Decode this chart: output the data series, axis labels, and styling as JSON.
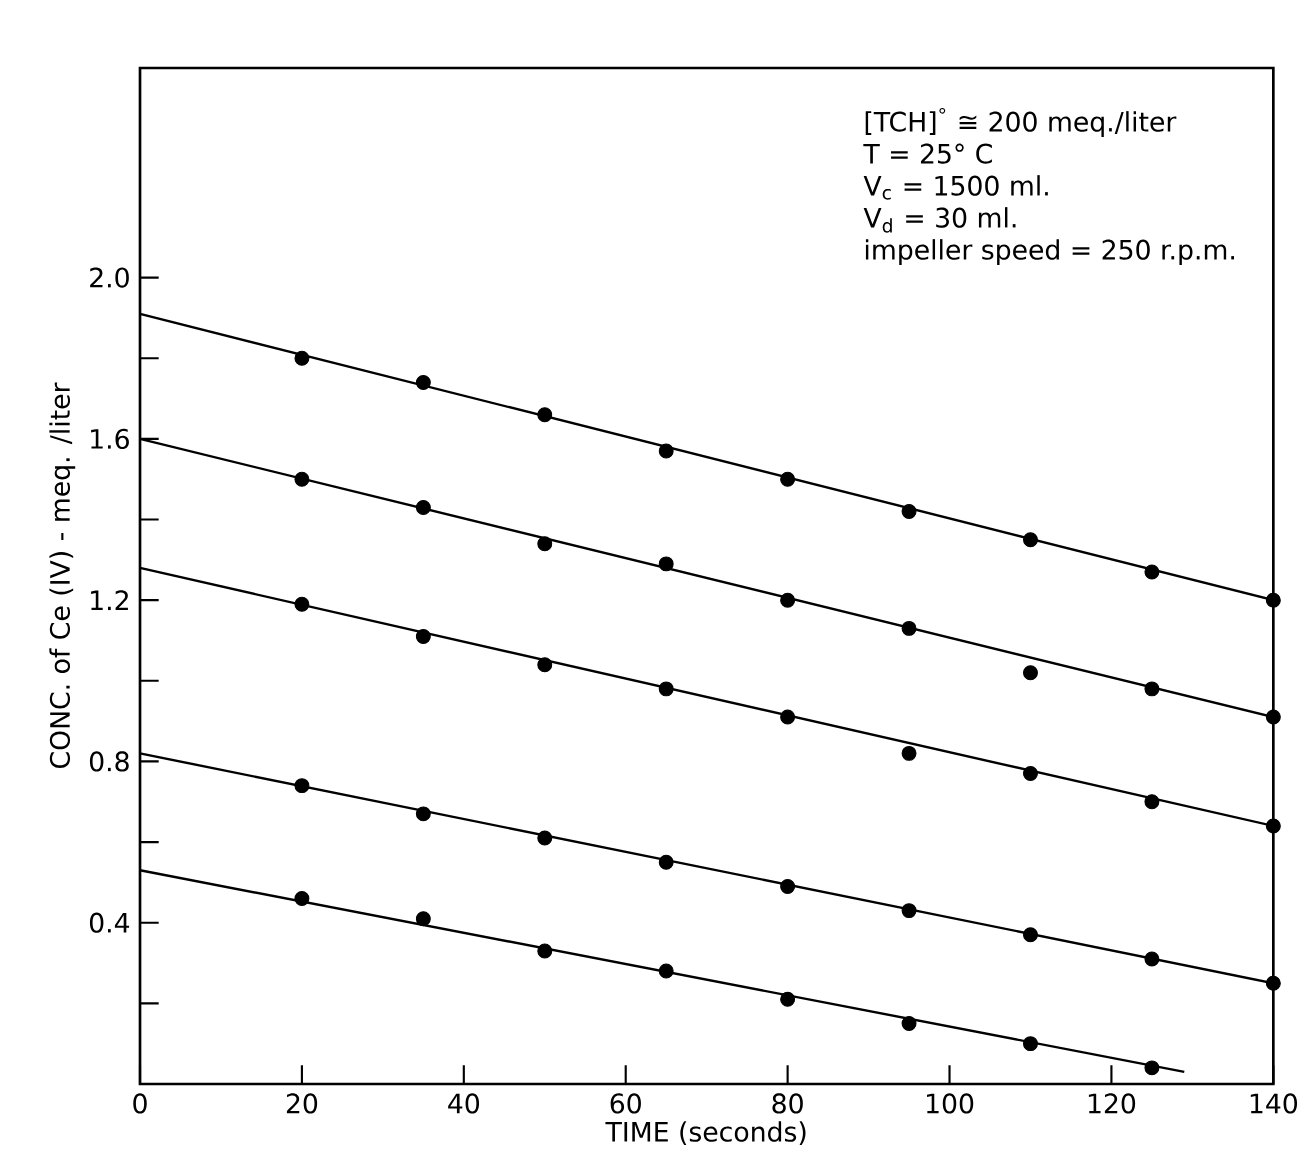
{
  "chart_data": {
    "type": "scatter",
    "xlabel": "TIME (seconds)",
    "ylabel": "CONC. of Ce (IV) - meq. /liter",
    "annotations": [
      "[TCH]$^{°}$ ≅ 200 meq./liter",
      "T = 25° C",
      "V$_{c}$ = 1500 ml.",
      "V$_{d}$ = 30 ml.",
      "impeller speed = 250 r.p.m."
    ],
    "xlim": [
      0,
      140
    ],
    "ylim": [
      0,
      2.52
    ],
    "xticks": [
      0,
      20,
      40,
      60,
      80,
      100,
      120,
      140
    ],
    "yticks": [
      {
        "value": 0.2,
        "label": null
      },
      {
        "value": 0.4,
        "label": "0.4"
      },
      {
        "value": 0.6,
        "label": null
      },
      {
        "value": 0.8,
        "label": "0.8"
      },
      {
        "value": 1.0,
        "label": null
      },
      {
        "value": 1.2,
        "label": "1.2"
      },
      {
        "value": 1.4,
        "label": null
      },
      {
        "value": 1.6,
        "label": "1.6"
      },
      {
        "value": 1.8,
        "label": null
      },
      {
        "value": 2.0,
        "label": "2.0"
      }
    ],
    "grid": false,
    "legend": false,
    "marker": "circle",
    "series": [
      {
        "color": "#000000",
        "x": [
          20,
          35,
          50,
          65,
          80,
          95,
          110,
          125,
          140
        ],
        "values": [
          1.8,
          1.74,
          1.66,
          1.57,
          1.5,
          1.42,
          1.35,
          1.27,
          1.2
        ]
      },
      {
        "color": "#000000",
        "x": [
          20,
          35,
          50,
          65,
          80,
          95,
          110,
          125,
          140
        ],
        "values": [
          1.5,
          1.43,
          1.34,
          1.29,
          1.2,
          1.13,
          1.02,
          0.98,
          0.91
        ]
      },
      {
        "color": "#000000",
        "x": [
          20,
          35,
          50,
          65,
          80,
          95,
          110,
          125,
          140
        ],
        "values": [
          1.19,
          1.11,
          1.04,
          0.98,
          0.91,
          0.82,
          0.77,
          0.7,
          0.64
        ]
      },
      {
        "color": "#000000",
        "x": [
          20,
          35,
          50,
          65,
          80,
          95,
          110,
          125,
          140
        ],
        "values": [
          0.74,
          0.67,
          0.61,
          0.55,
          0.49,
          0.43,
          0.37,
          0.31,
          0.25
        ]
      },
      {
        "color": "#000000",
        "x": [
          20,
          35,
          50,
          65,
          80,
          95,
          110,
          125
        ],
        "values": [
          0.46,
          0.41,
          0.33,
          0.28,
          0.21,
          0.15,
          0.1,
          0.04
        ]
      },
      {
        "type": "line",
        "color": "#000000",
        "marker": "none",
        "x": [
          0,
          140
        ],
        "values": [
          1.91,
          1.2
        ]
      },
      {
        "type": "line",
        "color": "#000000",
        "marker": "none",
        "x": [
          0,
          140
        ],
        "values": [
          1.6,
          0.91
        ]
      },
      {
        "type": "line",
        "color": "#000000",
        "marker": "none",
        "x": [
          0,
          140
        ],
        "values": [
          1.28,
          0.64
        ]
      },
      {
        "type": "line",
        "color": "#000000",
        "marker": "none",
        "x": [
          0,
          140
        ],
        "values": [
          0.82,
          0.25
        ]
      },
      {
        "type": "line",
        "color": "#000000",
        "marker": "none",
        "x": [
          0,
          129
        ],
        "values": [
          0.53,
          0.03
        ]
      }
    ]
  }
}
